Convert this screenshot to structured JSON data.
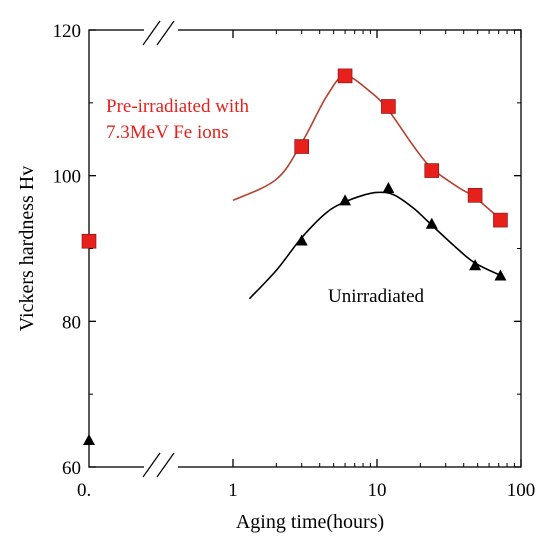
{
  "chart_data": {
    "type": "scatter",
    "xlabel": "Aging time(hours)",
    "ylabel": "Vickers hardness Hv",
    "x_scale": "log",
    "x_break": true,
    "y_break": true,
    "xlim": [
      1,
      100
    ],
    "ylim": [
      60,
      120
    ],
    "x_ticks": [
      {
        "value": 0,
        "label": "0."
      },
      {
        "value": 1,
        "label": "1"
      },
      {
        "value": 10,
        "label": "10"
      },
      {
        "value": 100,
        "label": "100"
      }
    ],
    "y_ticks": [
      {
        "value": 60,
        "label": "60"
      },
      {
        "value": 80,
        "label": "80"
      },
      {
        "value": 100,
        "label": "100"
      },
      {
        "value": 120,
        "label": "120"
      }
    ],
    "grid": false,
    "series": [
      {
        "name": "Pre-irradiated with 7.3MeV Fe ions",
        "label_lines": [
          "Pre-irradiated with",
          "7.3MeV Fe ions"
        ],
        "color": "#e8201c",
        "line_color": "#b5402f",
        "marker": "square",
        "unaged_point": {
          "x": 0,
          "y": 91
        },
        "points": [
          {
            "x": 3,
            "y": 104
          },
          {
            "x": 6,
            "y": 113.7
          },
          {
            "x": 12,
            "y": 109.5
          },
          {
            "x": 24,
            "y": 100.7
          },
          {
            "x": 48,
            "y": 97.3
          },
          {
            "x": 72,
            "y": 93.9
          }
        ],
        "trend": [
          {
            "x": 1,
            "y": 96.6
          },
          {
            "x": 2,
            "y": 99.5
          },
          {
            "x": 3,
            "y": 104.5
          },
          {
            "x": 4.5,
            "y": 111
          },
          {
            "x": 6,
            "y": 113.7
          },
          {
            "x": 9,
            "y": 111.5
          },
          {
            "x": 12,
            "y": 109
          },
          {
            "x": 18,
            "y": 104
          },
          {
            "x": 24,
            "y": 101
          },
          {
            "x": 36,
            "y": 98.5
          },
          {
            "x": 48,
            "y": 97
          },
          {
            "x": 72,
            "y": 94
          }
        ]
      },
      {
        "name": "Unirradiated",
        "label_lines": [
          "Unirradiated"
        ],
        "color": "#000000",
        "line_color": "#000000",
        "marker": "triangle",
        "unaged_point": {
          "x": 0,
          "y": 63.7
        },
        "points": [
          {
            "x": 3,
            "y": 91.1
          },
          {
            "x": 6,
            "y": 96.6
          },
          {
            "x": 12,
            "y": 98.3
          },
          {
            "x": 24,
            "y": 93.4
          },
          {
            "x": 48,
            "y": 87.7
          },
          {
            "x": 72,
            "y": 86.3
          }
        ],
        "trend": [
          {
            "x": 1.3,
            "y": 83.1
          },
          {
            "x": 2,
            "y": 87
          },
          {
            "x": 3,
            "y": 91.5
          },
          {
            "x": 4.5,
            "y": 95
          },
          {
            "x": 6,
            "y": 96.4
          },
          {
            "x": 8,
            "y": 97.3
          },
          {
            "x": 10,
            "y": 97.7
          },
          {
            "x": 13,
            "y": 97.4
          },
          {
            "x": 18,
            "y": 95.5
          },
          {
            "x": 24,
            "y": 93.2
          },
          {
            "x": 36,
            "y": 90
          },
          {
            "x": 48,
            "y": 88
          },
          {
            "x": 72,
            "y": 86.3
          }
        ]
      }
    ]
  }
}
